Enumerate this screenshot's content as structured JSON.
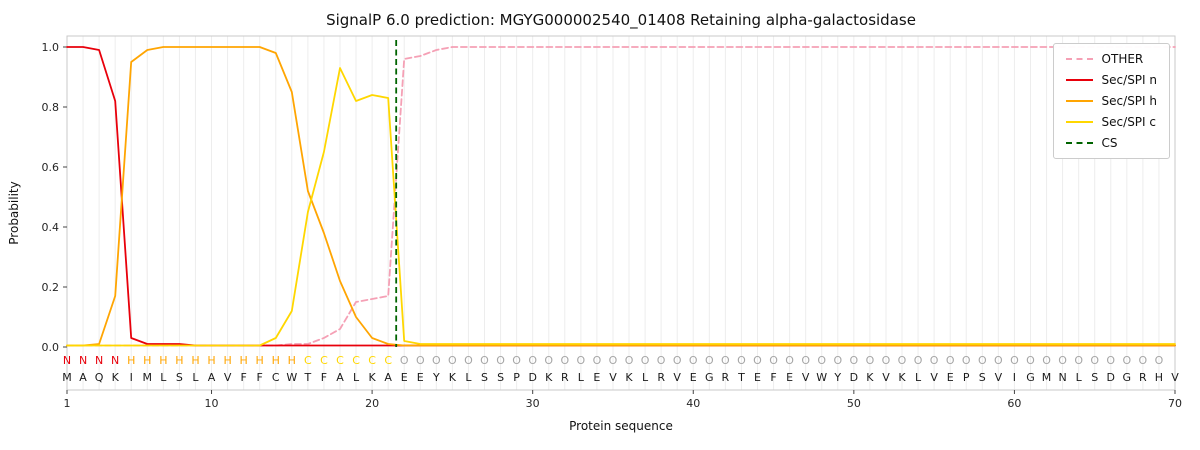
{
  "chart_data": {
    "type": "line",
    "title": "SignalP 6.0 prediction: MGYG000002540_01408 Retaining alpha-galactosidase",
    "xlabel": "Protein sequence",
    "ylabel": "Probability",
    "x_range": [
      1,
      70
    ],
    "xticks": [
      1,
      10,
      20,
      30,
      40,
      50,
      60,
      70
    ],
    "yticks": [
      0.0,
      0.2,
      0.4,
      0.6,
      0.8,
      1.0
    ],
    "grid": "vertical-per-residue",
    "legend_position": "top-right",
    "series": [
      {
        "name": "OTHER",
        "color": "#f5a0b5",
        "style": "dashed",
        "values": [
          0.005,
          0.005,
          0.005,
          0.005,
          0.005,
          0.005,
          0.005,
          0.005,
          0.005,
          0.005,
          0.005,
          0.005,
          0.005,
          0.005,
          0.01,
          0.01,
          0.03,
          0.06,
          0.15,
          0.16,
          0.17,
          0.96,
          0.97,
          0.99,
          1.0,
          1.0,
          1.0,
          1.0,
          1.0,
          1.0,
          1.0,
          1.0,
          1.0,
          1.0,
          1.0,
          1.0,
          1.0,
          1.0,
          1.0,
          1.0,
          1.0,
          1.0,
          1.0,
          1.0,
          1.0,
          1.0,
          1.0,
          1.0,
          1.0,
          1.0,
          1.0,
          1.0,
          1.0,
          1.0,
          1.0,
          1.0,
          1.0,
          1.0,
          1.0,
          1.0,
          1.0,
          1.0,
          1.0,
          1.0,
          1.0,
          1.0,
          1.0,
          1.0,
          1.0,
          1.0
        ]
      },
      {
        "name": "Sec/SPI n",
        "color": "#e8000b",
        "style": "solid",
        "values": [
          1.0,
          1.0,
          0.99,
          0.82,
          0.03,
          0.01,
          0.01,
          0.01,
          0.005,
          0.005,
          0.005,
          0.005,
          0.005,
          0.005,
          0.005,
          0.005,
          0.005,
          0.005,
          0.005,
          0.005,
          0.005,
          0.005,
          0.005,
          0.005,
          0.005,
          0.005,
          0.005,
          0.005,
          0.005,
          0.005,
          0.005,
          0.005,
          0.005,
          0.005,
          0.005,
          0.005,
          0.005,
          0.005,
          0.005,
          0.005,
          0.005,
          0.005,
          0.005,
          0.005,
          0.005,
          0.005,
          0.005,
          0.005,
          0.005,
          0.005,
          0.005,
          0.005,
          0.005,
          0.005,
          0.005,
          0.005,
          0.005,
          0.005,
          0.005,
          0.005,
          0.005,
          0.005,
          0.005,
          0.005,
          0.005,
          0.005,
          0.005,
          0.005,
          0.005,
          0.005
        ]
      },
      {
        "name": "Sec/SPI h",
        "color": "#ffa502",
        "style": "solid",
        "values": [
          0.005,
          0.005,
          0.01,
          0.17,
          0.95,
          0.99,
          1.0,
          1.0,
          1.0,
          1.0,
          1.0,
          1.0,
          1.0,
          0.98,
          0.85,
          0.52,
          0.38,
          0.22,
          0.1,
          0.03,
          0.01,
          0.005,
          0.005,
          0.005,
          0.005,
          0.005,
          0.005,
          0.005,
          0.005,
          0.005,
          0.005,
          0.005,
          0.005,
          0.005,
          0.005,
          0.005,
          0.005,
          0.005,
          0.005,
          0.005,
          0.005,
          0.005,
          0.005,
          0.005,
          0.005,
          0.005,
          0.005,
          0.005,
          0.005,
          0.005,
          0.005,
          0.005,
          0.005,
          0.005,
          0.005,
          0.005,
          0.005,
          0.005,
          0.005,
          0.005,
          0.005,
          0.005,
          0.005,
          0.005,
          0.005,
          0.005,
          0.005,
          0.005,
          0.005,
          0.005
        ]
      },
      {
        "name": "Sec/SPI c",
        "color": "#ffd700",
        "style": "solid",
        "values": [
          0.005,
          0.005,
          0.005,
          0.005,
          0.005,
          0.005,
          0.005,
          0.005,
          0.005,
          0.005,
          0.005,
          0.005,
          0.005,
          0.03,
          0.12,
          0.45,
          0.65,
          0.93,
          0.82,
          0.84,
          0.83,
          0.02,
          0.01,
          0.01,
          0.01,
          0.01,
          0.01,
          0.01,
          0.01,
          0.01,
          0.01,
          0.01,
          0.01,
          0.01,
          0.01,
          0.01,
          0.01,
          0.01,
          0.01,
          0.01,
          0.01,
          0.01,
          0.01,
          0.01,
          0.01,
          0.01,
          0.01,
          0.01,
          0.01,
          0.01,
          0.01,
          0.01,
          0.01,
          0.01,
          0.01,
          0.01,
          0.01,
          0.01,
          0.01,
          0.01,
          0.01,
          0.01,
          0.01,
          0.01,
          0.01,
          0.01,
          0.01,
          0.01,
          0.01,
          0.01
        ]
      }
    ],
    "cs": {
      "name": "CS",
      "position": 21.5,
      "color": "#006400",
      "style": "dashed"
    },
    "sequence": "MAQKIMLSLAVFFCWTFALKAEEYKLSSPDKRLEVKLRVEGRTEFEVWYDKVKLVEPSVIGMNLSDGRHV",
    "region_labels": "NNNNHHHHHHHHHHHCCCCCCOOOOOOOOOOOOOOOOOOOOOOOOOOOOOOOOOOOOOOOOOOOOOOOO",
    "region_colors": {
      "N": "#e8000b",
      "H": "#ffa502",
      "C": "#ffd700",
      "O": "#a6a6a6"
    },
    "sequence_color": "#1a1a1a"
  }
}
